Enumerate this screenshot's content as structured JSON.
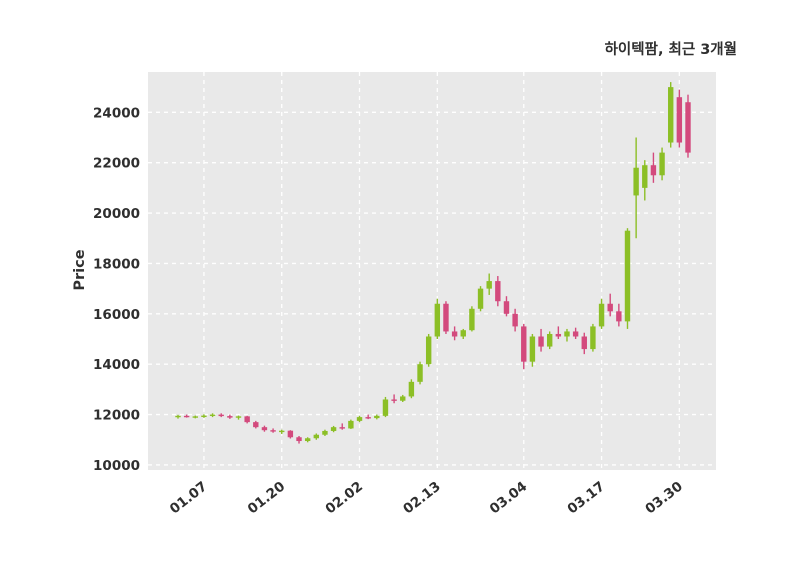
{
  "chart_data": {
    "type": "candlestick",
    "title": "하이텍팜, 최근 3개월",
    "ylabel": "Price",
    "xlabel": "",
    "ylim": [
      9800,
      25600
    ],
    "yticks": [
      10000,
      12000,
      14000,
      16000,
      18000,
      20000,
      22000,
      24000
    ],
    "xticks": [
      {
        "index": 3,
        "label": "01.07"
      },
      {
        "index": 12,
        "label": "01.20"
      },
      {
        "index": 21,
        "label": "02.02"
      },
      {
        "index": 30,
        "label": "02.13"
      },
      {
        "index": 40,
        "label": "03.04"
      },
      {
        "index": 49,
        "label": "03.17"
      },
      {
        "index": 58,
        "label": "03.30"
      }
    ],
    "grid": {
      "style": "dashed",
      "color": "#ffffff"
    },
    "legend": "none",
    "colors": {
      "up": "#8cbf26",
      "down": "#d34a7d",
      "plot_bg": "#e9e9e9",
      "grid": "#ffffff",
      "text": "#2f2f2f"
    },
    "ohlc": [
      [
        11900,
        11990,
        11840,
        11950
      ],
      [
        11950,
        12000,
        11880,
        11900
      ],
      [
        11900,
        11960,
        11850,
        11930
      ],
      [
        11930,
        12010,
        11870,
        11960
      ],
      [
        11960,
        12050,
        11900,
        12000
      ],
      [
        12000,
        12050,
        11900,
        11940
      ],
      [
        11940,
        12000,
        11830,
        11880
      ],
      [
        11880,
        11960,
        11800,
        11930
      ],
      [
        11930,
        11950,
        11650,
        11700
      ],
      [
        11700,
        11750,
        11450,
        11500
      ],
      [
        11500,
        11560,
        11320,
        11380
      ],
      [
        11380,
        11450,
        11280,
        11330
      ],
      [
        11330,
        11400,
        11230,
        11360
      ],
      [
        11360,
        11380,
        11050,
        11100
      ],
      [
        11100,
        11150,
        10850,
        10950
      ],
      [
        10950,
        11100,
        10900,
        11060
      ],
      [
        11060,
        11250,
        11000,
        11200
      ],
      [
        11200,
        11400,
        11150,
        11350
      ],
      [
        11350,
        11550,
        11300,
        11500
      ],
      [
        11500,
        11650,
        11400,
        11450
      ],
      [
        11450,
        11800,
        11430,
        11750
      ],
      [
        11750,
        11950,
        11700,
        11900
      ],
      [
        11900,
        12000,
        11820,
        11860
      ],
      [
        11860,
        12000,
        11810,
        11950
      ],
      [
        11950,
        12700,
        11900,
        12600
      ],
      [
        12600,
        12800,
        12450,
        12550
      ],
      [
        12550,
        12780,
        12500,
        12720
      ],
      [
        12720,
        13400,
        12650,
        13300
      ],
      [
        13300,
        14100,
        13200,
        14000
      ],
      [
        14000,
        15200,
        13900,
        15100
      ],
      [
        15100,
        16600,
        15000,
        16400
      ],
      [
        16400,
        16500,
        15200,
        15300
      ],
      [
        15300,
        15500,
        14950,
        15100
      ],
      [
        15100,
        15400,
        15000,
        15350
      ],
      [
        15350,
        16300,
        15300,
        16200
      ],
      [
        16200,
        17100,
        16100,
        17000
      ],
      [
        17000,
        17600,
        16750,
        17300
      ],
      [
        17300,
        17500,
        16300,
        16500
      ],
      [
        16500,
        16700,
        15900,
        16000
      ],
      [
        16000,
        16200,
        15300,
        15500
      ],
      [
        15500,
        15600,
        13800,
        14100
      ],
      [
        14100,
        15200,
        13900,
        15100
      ],
      [
        15100,
        15400,
        14500,
        14700
      ],
      [
        14700,
        15300,
        14600,
        15200
      ],
      [
        15200,
        15500,
        15000,
        15100
      ],
      [
        15100,
        15400,
        14900,
        15300
      ],
      [
        15300,
        15450,
        15000,
        15100
      ],
      [
        15100,
        15250,
        14400,
        14600
      ],
      [
        14600,
        15600,
        14500,
        15500
      ],
      [
        15500,
        16600,
        15400,
        16400
      ],
      [
        16400,
        16800,
        15900,
        16100
      ],
      [
        16100,
        16400,
        15500,
        15700
      ],
      [
        15700,
        19400,
        15400,
        19300
      ],
      [
        20700,
        23000,
        19000,
        21800
      ],
      [
        21000,
        22100,
        20500,
        21900
      ],
      [
        21900,
        22400,
        21200,
        21500
      ],
      [
        21500,
        22600,
        21300,
        22400
      ],
      [
        22800,
        25200,
        22600,
        25000
      ],
      [
        24600,
        24900,
        22600,
        22800
      ],
      [
        24400,
        24700,
        22200,
        22400
      ]
    ]
  }
}
